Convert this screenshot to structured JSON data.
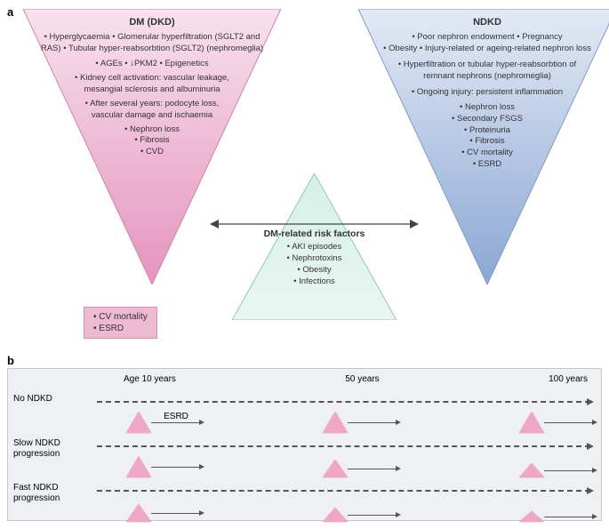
{
  "panel_a": {
    "label": "a",
    "left_triangle": {
      "title": "DM (DKD)",
      "fill_gradient": [
        "#f7e2ed",
        "#e593bd"
      ],
      "stroke": "#d67fae",
      "lines": [
        "• Hyperglycaemia  • Glomerular hyperfiltration (SGLT2 and RAS)  • Tubular hyper-reabsorbtion (SGLT2) (nephromeglia)",
        "• AGEs  • ↓PKM2  • Epigenetics",
        "• Kidney cell activation: vascular leakage, mesangial sclerosis and albuminuria",
        "• After several years: podocyte loss, vascular damage and ischaemia",
        "• Nephron loss",
        "• Fibrosis",
        "• CVD"
      ]
    },
    "right_triangle": {
      "title": "NDKD",
      "fill_gradient": [
        "#e3eaf5",
        "#8ba7d4"
      ],
      "stroke": "#7d9ac9",
      "lines": [
        "• Poor nephron endowment  • Pregnancy",
        "• Obesity  • Injury-related or ageing-related nephron loss",
        "• Hyperfiltration or tubular hyper-reabsorbtion of remnant nephrons (nephromeglia)",
        "• Ongoing injury: persistent inflammation",
        "• Nephron loss",
        "• Secondary FSGS",
        "• Proteinuria",
        "• Fibrosis",
        "• CV mortality",
        "• ESRD"
      ]
    },
    "center_triangle": {
      "title": "DM-related risk factors",
      "fill_gradient": [
        "#d6f0e6",
        "#e8f7f1"
      ],
      "stroke": "#8fc9b5",
      "lines": [
        "• AKI episodes",
        "• Nephrotoxins",
        "• Obesity",
        "• Infections"
      ]
    },
    "outcome_box": {
      "lines": [
        "• CV mortality",
        "• ESRD"
      ],
      "fill": "#eeb9d3",
      "stroke": "#d98cb8"
    }
  },
  "panel_b": {
    "label": "b",
    "bg": "#eef0f3",
    "border": "#c5c8cc",
    "age_labels": [
      "Age 10 years",
      "50 years",
      "100 years"
    ],
    "rows": [
      {
        "label": "No NDKD",
        "triangles": []
      },
      {
        "label": "Slow NDKD progression",
        "esrd_label": "ESRD"
      },
      {
        "label": "Fast NDKD progression"
      }
    ],
    "tri_fill": "#efa7c5",
    "tri_stroke": "#c9749f",
    "row2_heights": [
      24,
      20,
      16
    ],
    "row3_heights": [
      20,
      16,
      12
    ],
    "positions_pct": [
      6,
      46,
      86
    ]
  }
}
